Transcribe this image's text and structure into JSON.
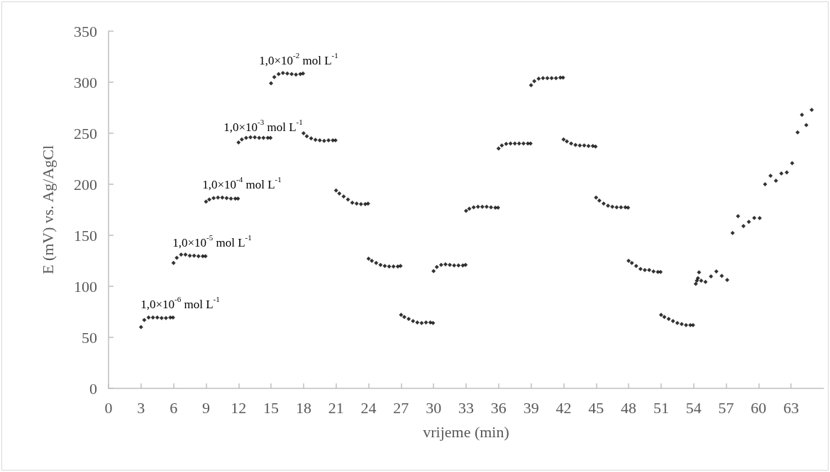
{
  "chart_data": {
    "type": "scatter",
    "xlabel": "vrijeme (min)",
    "ylabel": "E (mV) vs. Ag/AgCl",
    "xlim": [
      0,
      66
    ],
    "xticks": [
      0,
      3,
      6,
      9,
      12,
      15,
      18,
      21,
      24,
      27,
      30,
      33,
      36,
      39,
      42,
      45,
      48,
      51,
      54,
      57,
      60,
      63
    ],
    "ylim": [
      0,
      350
    ],
    "yticks": [
      0,
      50,
      100,
      150,
      200,
      250,
      300,
      350
    ],
    "grid": false,
    "marker": "diamond",
    "annotations": [
      "1,0×10$^{-6}$ mol L$^{-1}$",
      "1,0×10$^{-5}$ mol L$^{-1}$",
      "1,0×10$^{-4}$ mol L$^{-1}$",
      "1,0×10$^{-3}$ mol L$^{-1}$",
      "1,0×10$^{-2}$ mol L$^{-1}$"
    ],
    "series": [
      {
        "color": "#000000",
        "x": [
          3,
          3.3,
          3.7,
          4.1,
          4.5,
          4.9,
          5.3,
          5.7,
          5.95,
          6,
          6.3,
          6.7,
          7.1,
          7.5,
          7.9,
          8.3,
          8.7,
          8.95,
          9,
          9.3,
          9.7,
          10.1,
          10.5,
          10.9,
          11.3,
          11.7,
          11.95,
          12,
          12.3,
          12.7,
          13.1,
          13.5,
          13.9,
          14.3,
          14.7,
          14.95,
          15,
          15.3,
          15.7,
          16.1,
          16.5,
          16.9,
          17.3,
          17.7,
          17.95,
          18,
          18.3,
          18.7,
          19.1,
          19.5,
          19.9,
          20.3,
          20.7,
          20.95,
          21,
          21.3,
          21.7,
          22.1,
          22.5,
          22.9,
          23.3,
          23.7,
          23.95,
          24,
          24.3,
          24.7,
          25.1,
          25.5,
          25.9,
          26.3,
          26.7,
          26.95,
          27,
          27.3,
          27.7,
          28.1,
          28.5,
          28.9,
          29.3,
          29.7,
          29.95,
          30,
          30.3,
          30.7,
          31.1,
          31.5,
          31.9,
          32.3,
          32.7,
          32.95,
          33,
          33.3,
          33.7,
          34.1,
          34.5,
          34.9,
          35.3,
          35.7,
          35.95,
          36,
          36.3,
          36.7,
          37.1,
          37.5,
          37.9,
          38.3,
          38.7,
          38.95,
          39,
          39.3,
          39.7,
          40.1,
          40.5,
          40.9,
          41.3,
          41.7,
          41.95,
          42,
          42.3,
          42.7,
          43.1,
          43.5,
          43.9,
          44.3,
          44.7,
          44.95,
          45,
          45.3,
          45.7,
          46.1,
          46.5,
          46.9,
          47.3,
          47.7,
          47.95,
          48,
          48.3,
          48.7,
          49.1,
          49.5,
          49.9,
          50.3,
          50.7,
          50.95,
          51,
          51.3,
          51.7,
          52.1,
          52.5,
          52.9,
          53.3,
          53.7,
          53.95,
          54.2,
          54.3,
          54.4,
          54.5,
          54.7,
          55.1,
          55.6,
          56.1,
          56.6,
          57.1,
          57.6,
          58.1,
          58.6,
          59.1,
          59.6,
          60.1,
          60.6,
          61.1,
          61.6,
          62.1,
          62.6,
          63.1,
          63.6,
          64.0,
          64.4,
          64.9
        ],
        "values": [
          60,
          67,
          69.5,
          69.5,
          69.5,
          69,
          69,
          69.5,
          69.5,
          123,
          128,
          131,
          131,
          130,
          130,
          129.5,
          129.5,
          129.5,
          183,
          185,
          186.5,
          187,
          187,
          186.5,
          186,
          186,
          186,
          241,
          244,
          245.5,
          246,
          246,
          245.5,
          245.5,
          245.5,
          245.5,
          299,
          305,
          308,
          309,
          308.5,
          308,
          307.5,
          308,
          308.5,
          250,
          247,
          245,
          243.5,
          243,
          242.5,
          243,
          243,
          243,
          194,
          191,
          188,
          185,
          182,
          181,
          180.5,
          180.5,
          181,
          127,
          125,
          123,
          121,
          120,
          119.5,
          119.5,
          119.5,
          120,
          72,
          70,
          68,
          66,
          64.5,
          64,
          64.5,
          64.5,
          64,
          115,
          119,
          121,
          121.5,
          121,
          120.5,
          120.5,
          120.5,
          121,
          174,
          176,
          177.5,
          178,
          178,
          178,
          177.5,
          177,
          177,
          235,
          238,
          239.5,
          240,
          240,
          240,
          240,
          240,
          240,
          297,
          301,
          303.5,
          304,
          304,
          304,
          304,
          304.5,
          304.5,
          244,
          242,
          240,
          238.5,
          238,
          238,
          237.5,
          237.5,
          237,
          187,
          184,
          181,
          179,
          178,
          177.5,
          177.5,
          177.5,
          177,
          125,
          123,
          120,
          117,
          116,
          116,
          114.5,
          114,
          114,
          72,
          70,
          68,
          66,
          64,
          63,
          62,
          62,
          62,
          102.5,
          105.5,
          108,
          113.7,
          105.5,
          104.4,
          109.7,
          114.6,
          110.2,
          106.3,
          152.3,
          168.8,
          159,
          163.2,
          167.1,
          166.9,
          200,
          208.3,
          203.5,
          210.6,
          211.6,
          220.6,
          250.9,
          268,
          258,
          273
        ]
      }
    ]
  }
}
